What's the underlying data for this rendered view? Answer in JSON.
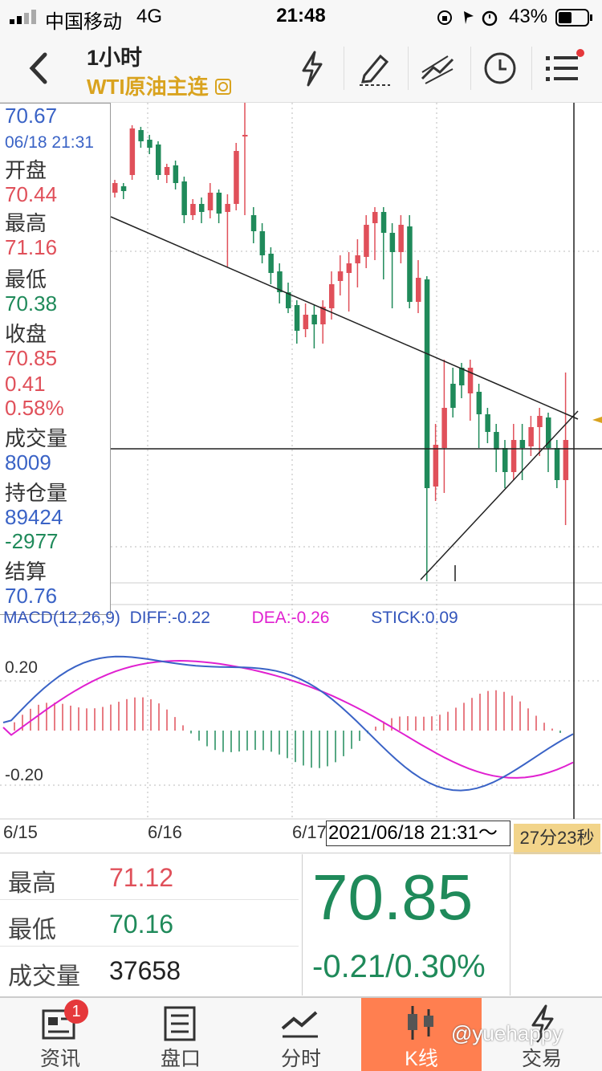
{
  "status": {
    "carrier": "中国移动",
    "network": "4G",
    "time": "21:48",
    "battery": "43%"
  },
  "header": {
    "period": "1小时",
    "instrument": "WTI原油主连",
    "instrument_icon": "refresh-icon"
  },
  "toolbar": {
    "icons": [
      "lightning-icon",
      "pen-icon",
      "drawing-tools-icon",
      "clock-icon",
      "menu-icon"
    ]
  },
  "info": {
    "price": "70.67",
    "datetime": "06/18 21:31",
    "open_label": "开盘",
    "open": "70.44",
    "high_label": "最高",
    "high": "71.16",
    "low_label": "最低",
    "low": "70.38",
    "close_label": "收盘",
    "close": "70.85",
    "change": "0.41",
    "change_pct": "0.58%",
    "volume_label": "成交量",
    "volume": "8009",
    "oi_label": "持仓量",
    "oi": "89424",
    "oi_change": "-2977",
    "settle_label": "结算",
    "settle": "70.76"
  },
  "macd": {
    "label": "MACD(12,26,9)",
    "diff": "DIFF:-0.22",
    "dea": "DEA:-0.26",
    "stick": "STICK:0.09",
    "y_top": "0.20",
    "y_bottom": "-0.20"
  },
  "axis": {
    "dates": [
      "6/15",
      "6/16",
      "6/17"
    ],
    "cursor_date": "2021/06/18 21:31～",
    "countdown": "27分23秒"
  },
  "stats": {
    "high_label": "最高",
    "high": "71.12",
    "low_label": "最低",
    "low": "70.16",
    "volume_label": "成交量",
    "volume": "37658",
    "last": "70.85",
    "change": "-0.21/0.30%"
  },
  "tabs": [
    {
      "label": "资讯",
      "icon": "news-icon",
      "badge": "1"
    },
    {
      "label": "盘口",
      "icon": "orderbook-icon"
    },
    {
      "label": "分时",
      "icon": "intraday-icon"
    },
    {
      "label": "K线",
      "icon": "candlestick-icon"
    },
    {
      "label": "交易",
      "icon": "trade-lightning-icon"
    }
  ],
  "watermark": "@yuehappy",
  "colors": {
    "up": "#e0505a",
    "down": "#1f8a5a",
    "accent": "#ff7f50",
    "diff": "#3a63c6",
    "dea": "#e020d0",
    "title": "#d9a31f"
  }
}
